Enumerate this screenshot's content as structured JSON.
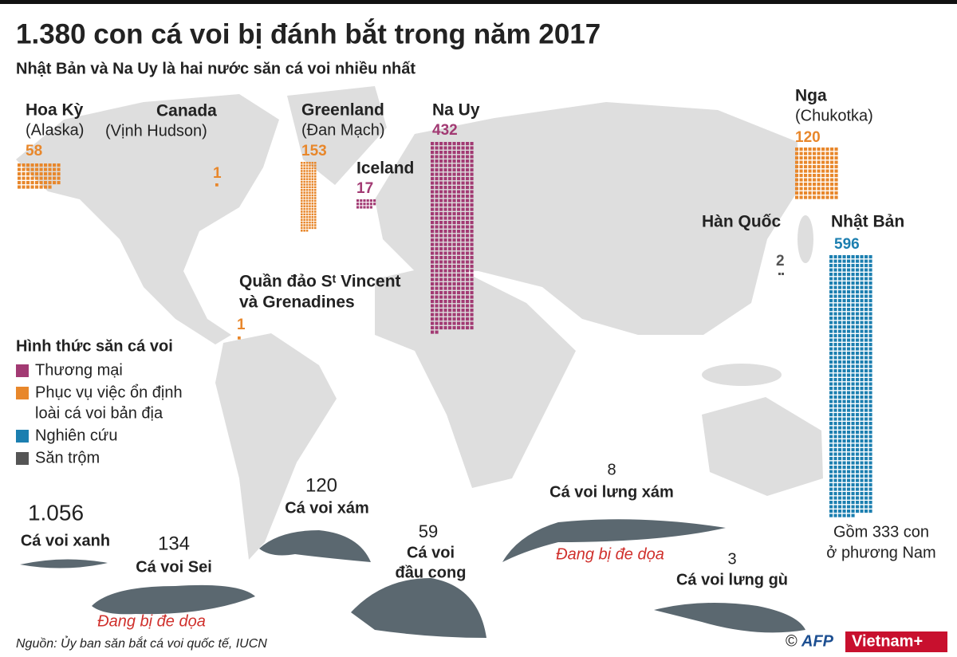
{
  "header": {
    "title": "1.380 con cá voi bị đánh bắt trong năm 2017",
    "subtitle": "Nhật Bản và Na Uy là hai nước săn cá voi nhiều nhất"
  },
  "countries": [
    {
      "name": "Hoa Kỳ",
      "region": "(Alaska)",
      "count": 58,
      "color": "#e8872b"
    },
    {
      "name": "Canada",
      "region": "(Vịnh Hudson)",
      "count": 1,
      "color": "#e8872b"
    },
    {
      "name": "Greenland",
      "region": "(Đan Mạch)",
      "count": 153,
      "color": "#e8872b"
    },
    {
      "name": "Iceland",
      "count": 17,
      "color": "#a23a73"
    },
    {
      "name": "Na Uy",
      "count": 432,
      "color": "#a23a73"
    },
    {
      "name": "Nga",
      "region": "(Chukotka)",
      "count": 120,
      "color": "#e8872b"
    },
    {
      "name": "Hàn Quốc",
      "count": 2,
      "color": "#555555"
    },
    {
      "name": [
        "Quần đảo Sᵗ Vincent",
        "và Grenadines"
      ],
      "count": 1,
      "color": "#e8872b"
    },
    {
      "name": "Nhật Bản",
      "count": 596,
      "color": "#1c7fb0",
      "note": [
        "Gồm 333 con",
        "ở phương Nam"
      ]
    }
  ],
  "legend": {
    "title": "Hình thức săn cá voi",
    "items": [
      {
        "label": [
          "Thương mại"
        ],
        "color": "#a23a73"
      },
      {
        "label": [
          "Phục vụ việc ổn định",
          "loài cá voi bản địa"
        ],
        "color": "#e8872b"
      },
      {
        "label": [
          "Nghiên cứu"
        ],
        "color": "#1c7fb0"
      },
      {
        "label": [
          "Săn trộm"
        ],
        "color": "#555555"
      }
    ]
  },
  "whales": [
    {
      "count": 1056,
      "count_label": "1.056",
      "name": [
        "Cá voi xanh"
      ]
    },
    {
      "count": 134,
      "name": [
        "Cá voi Sei"
      ],
      "status": "Đang bị đe dọa"
    },
    {
      "count": 120,
      "name": [
        "Cá voi xám"
      ]
    },
    {
      "count": 59,
      "name": [
        "Cá voi",
        "đầu cong"
      ]
    },
    {
      "count": 8,
      "name": [
        "Cá voi lưng xám"
      ],
      "status": "Đang bị đe dọa"
    },
    {
      "count": 3,
      "name": [
        "Cá voi lưng gù"
      ]
    }
  ],
  "source": "Nguồn: Ủy ban săn bắt cá voi quốc tế, IUCN",
  "credits": [
    "©",
    "AFP",
    "Vietnam+"
  ]
}
